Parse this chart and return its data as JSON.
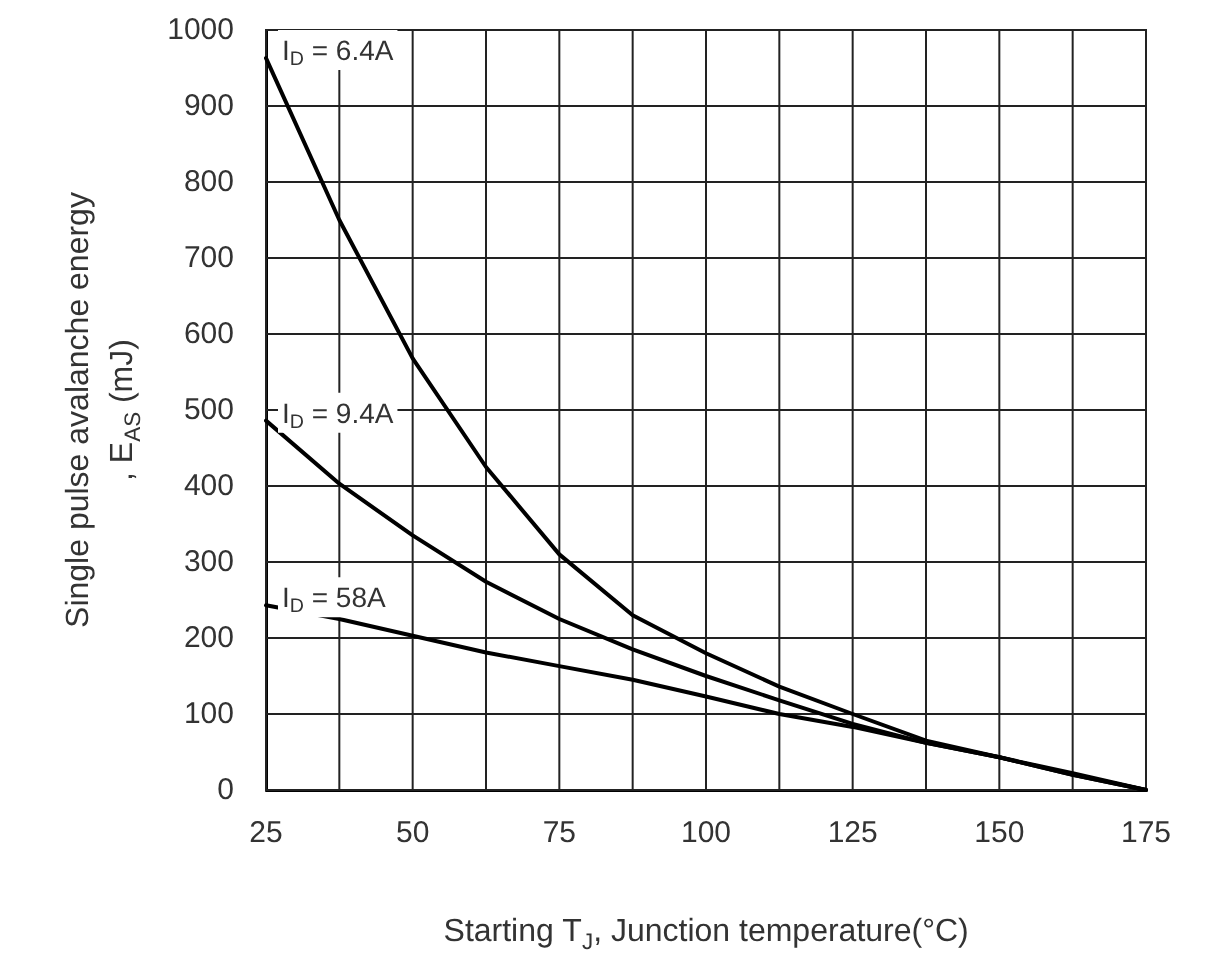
{
  "chart_data": {
    "type": "line",
    "xlabel": "Starting T$_{J}$, Junction temperature(°C)",
    "ylabel": "Single pulse avalanche energy\n, E$_{AS}$ (mJ)",
    "x": [
      25,
      37.5,
      50,
      62.5,
      75,
      87.5,
      100,
      112.5,
      125,
      137.5,
      150,
      162.5,
      175
    ],
    "series": [
      {
        "color": "#000000",
        "values": [
          963,
          750,
          568,
          425,
          310,
          230,
          180,
          136,
          100,
          65,
          43,
          20,
          0
        ]
      },
      {
        "color": "#000000",
        "values": [
          486,
          403,
          335,
          274,
          225,
          185,
          150,
          118,
          87,
          62,
          43,
          20,
          0
        ]
      },
      {
        "color": "#000000",
        "values": [
          243,
          225,
          203,
          181,
          163,
          145,
          123,
          100,
          83,
          62,
          43,
          22,
          0
        ]
      }
    ],
    "annotations": [
      "I$_{D}$ = 6.4A",
      "I$_{D}$ = 9.4A",
      "I$_{D}$ = 58A"
    ],
    "xlim": [
      25,
      175
    ],
    "xticks": [
      25,
      50,
      75,
      100,
      125,
      150,
      175
    ],
    "ylim": [
      0,
      1000
    ],
    "yticks": [
      0,
      100,
      200,
      300,
      400,
      500,
      600,
      700,
      800,
      900,
      1000
    ],
    "grid": true,
    "marker": "none",
    "line_style": "solid"
  }
}
